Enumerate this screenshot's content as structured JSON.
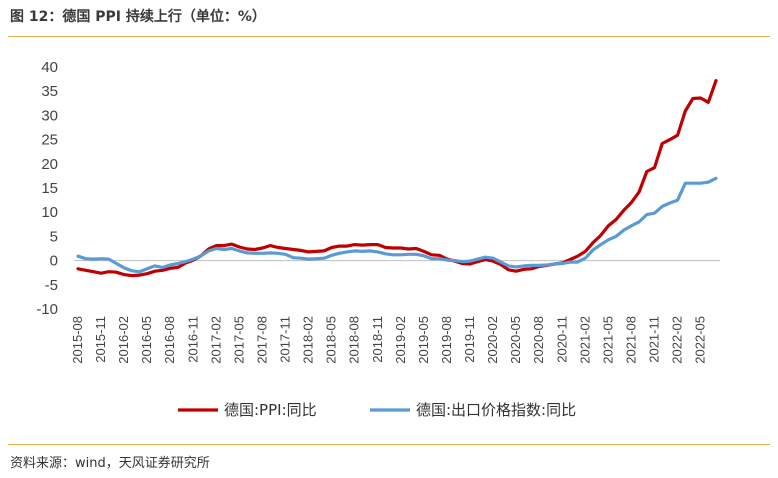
{
  "figure": {
    "title": "图 12：德国 PPI 持续上行（单位：%）",
    "source": "资料来源：wind，天风证券研究所"
  },
  "chart_data": {
    "type": "line",
    "ylim": [
      -10,
      40
    ],
    "yticks": [
      -10,
      -5,
      0,
      5,
      10,
      15,
      20,
      25,
      30,
      35,
      40
    ],
    "yticklabels": [
      "-10",
      "-5",
      "0",
      "5",
      "10",
      "15",
      "20",
      "25",
      "30",
      "35",
      "40"
    ],
    "xticks": [
      "2015-08",
      "2015-11",
      "2016-02",
      "2016-05",
      "2016-08",
      "2016-11",
      "2017-02",
      "2017-05",
      "2017-08",
      "2017-11",
      "2018-02",
      "2018-05",
      "2018-08",
      "2018-11",
      "2019-02",
      "2019-05",
      "2019-08",
      "2019-11",
      "2020-02",
      "2020-05",
      "2020-08",
      "2020-11",
      "2021-02",
      "2021-05",
      "2021-08",
      "2021-11",
      "2022-02",
      "2022-05"
    ],
    "grid": false,
    "legend": "bottom",
    "x": [
      "2015-08",
      "2015-09",
      "2015-10",
      "2015-11",
      "2015-12",
      "2016-01",
      "2016-02",
      "2016-03",
      "2016-04",
      "2016-05",
      "2016-06",
      "2016-07",
      "2016-08",
      "2016-09",
      "2016-10",
      "2016-11",
      "2016-12",
      "2017-01",
      "2017-02",
      "2017-03",
      "2017-04",
      "2017-05",
      "2017-06",
      "2017-07",
      "2017-08",
      "2017-09",
      "2017-10",
      "2017-11",
      "2017-12",
      "2018-01",
      "2018-02",
      "2018-03",
      "2018-04",
      "2018-05",
      "2018-06",
      "2018-07",
      "2018-08",
      "2018-09",
      "2018-10",
      "2018-11",
      "2018-12",
      "2019-01",
      "2019-02",
      "2019-03",
      "2019-04",
      "2019-05",
      "2019-06",
      "2019-07",
      "2019-08",
      "2019-09",
      "2019-10",
      "2019-11",
      "2019-12",
      "2020-01",
      "2020-02",
      "2020-03",
      "2020-04",
      "2020-05",
      "2020-06",
      "2020-07",
      "2020-08",
      "2020-09",
      "2020-10",
      "2020-11",
      "2020-12",
      "2021-01",
      "2021-02",
      "2021-03",
      "2021-04",
      "2021-05",
      "2021-06",
      "2021-07",
      "2021-08",
      "2021-09",
      "2021-10",
      "2021-11",
      "2021-12",
      "2022-01",
      "2022-02",
      "2022-03",
      "2022-04",
      "2022-05",
      "2022-06",
      "2022-07"
    ],
    "series": [
      {
        "name": "德国:PPI:同比",
        "color": "#c00000",
        "values": [
          -1.7,
          -2.0,
          -2.3,
          -2.6,
          -2.3,
          -2.4,
          -2.9,
          -3.1,
          -3.0,
          -2.7,
          -2.2,
          -2.0,
          -1.6,
          -1.4,
          -0.5,
          0.1,
          1.0,
          2.4,
          3.1,
          3.1,
          3.4,
          2.8,
          2.4,
          2.3,
          2.6,
          3.1,
          2.7,
          2.5,
          2.3,
          2.1,
          1.8,
          1.9,
          2.0,
          2.7,
          3.0,
          3.0,
          3.3,
          3.2,
          3.3,
          3.3,
          2.7,
          2.6,
          2.6,
          2.4,
          2.5,
          1.9,
          1.2,
          1.1,
          0.3,
          -0.1,
          -0.6,
          -0.7,
          -0.2,
          0.2,
          -0.1,
          -0.8,
          -1.9,
          -2.2,
          -1.8,
          -1.7,
          -1.2,
          -1.0,
          -0.7,
          -0.5,
          0.2,
          0.9,
          1.9,
          3.7,
          5.2,
          7.2,
          8.5,
          10.4,
          12.0,
          14.2,
          18.4,
          19.2,
          24.2,
          25.0,
          25.9,
          30.9,
          33.5,
          33.6,
          32.7,
          37.2
        ]
      },
      {
        "name": "德国:出口价格指数:同比",
        "color": "#5b9bd5",
        "values": [
          0.9,
          0.4,
          0.3,
          0.4,
          0.3,
          -0.6,
          -1.5,
          -2.1,
          -2.3,
          -1.7,
          -1.1,
          -1.4,
          -0.9,
          -0.6,
          -0.2,
          0.3,
          1.0,
          2.0,
          2.5,
          2.3,
          2.5,
          2.0,
          1.6,
          1.5,
          1.5,
          1.6,
          1.5,
          1.3,
          0.6,
          0.5,
          0.3,
          0.4,
          0.5,
          1.1,
          1.5,
          1.8,
          2.0,
          1.9,
          2.0,
          1.8,
          1.4,
          1.2,
          1.2,
          1.3,
          1.3,
          1.0,
          0.4,
          0.4,
          0.1,
          0.0,
          -0.2,
          -0.1,
          0.3,
          0.7,
          0.5,
          -0.3,
          -1.1,
          -1.3,
          -1.1,
          -1.0,
          -1.0,
          -0.9,
          -0.7,
          -0.6,
          -0.3,
          -0.3,
          0.5,
          2.2,
          3.3,
          4.3,
          5.0,
          6.3,
          7.2,
          8.0,
          9.5,
          9.8,
          11.2,
          11.9,
          12.5,
          16.0,
          16.0,
          16.0,
          16.2,
          17.0
        ]
      }
    ]
  }
}
